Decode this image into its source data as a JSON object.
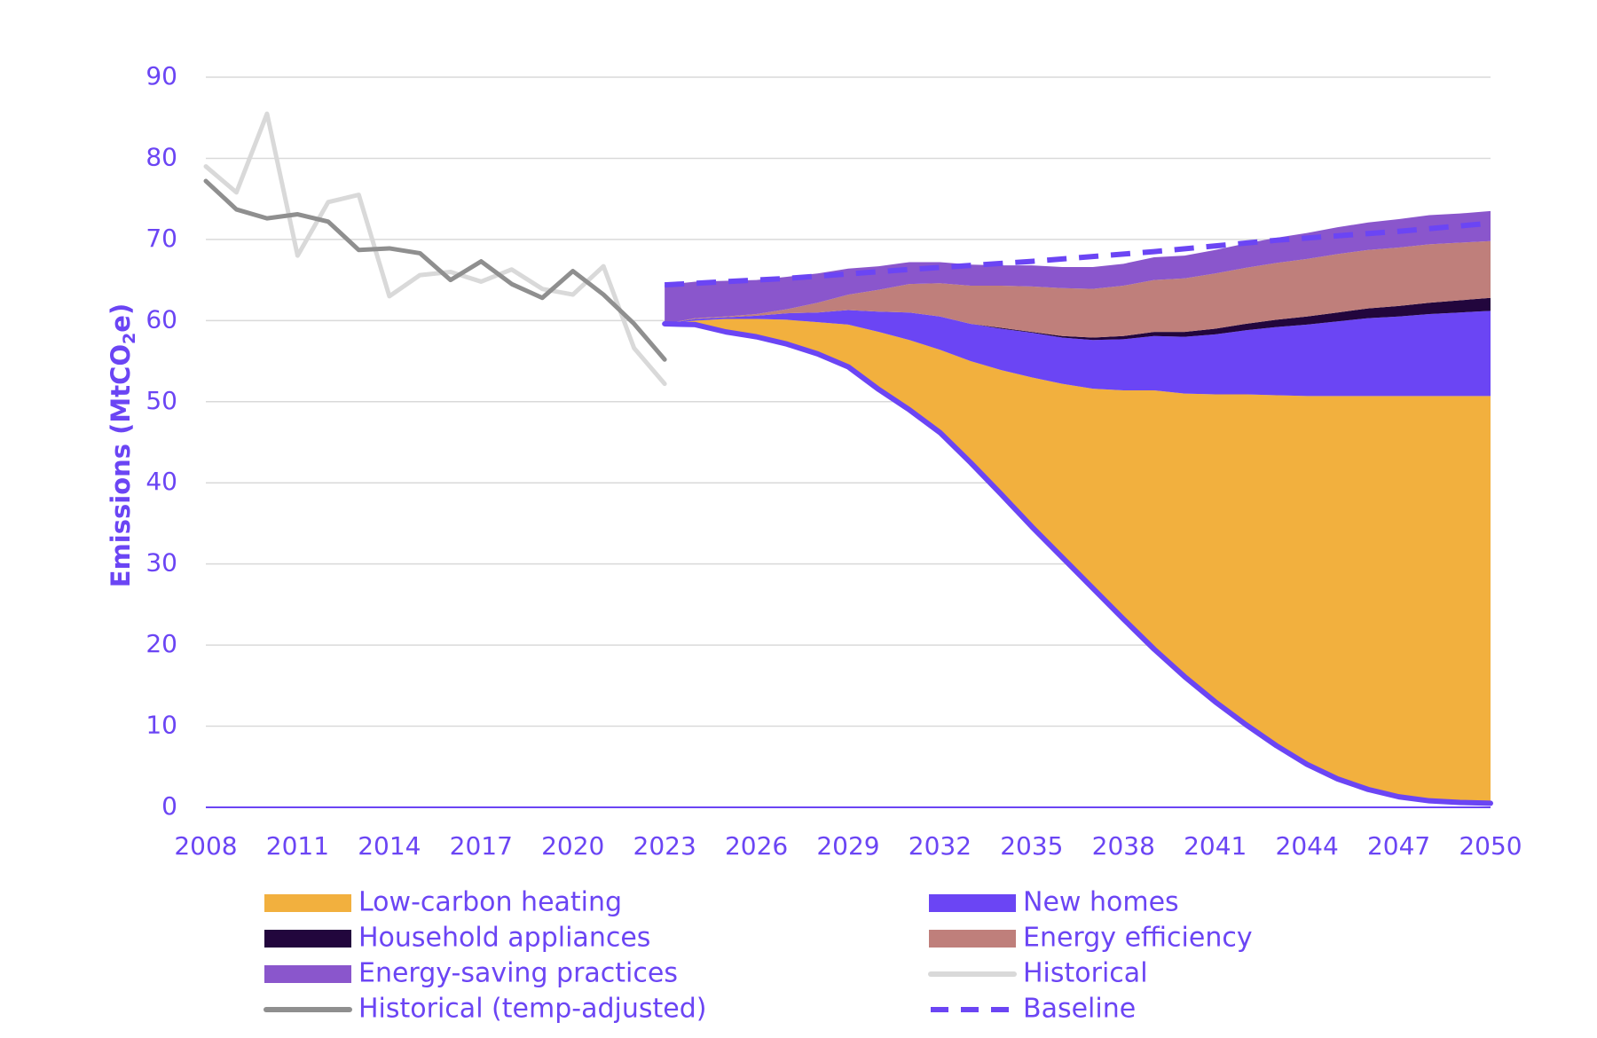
{
  "chart_data": {
    "type": "area",
    "title": "",
    "xlabel": "",
    "ylabel": "Emissions (MtCO2e)",
    "ylabel_parts": {
      "prefix": "Emissions (MtCO",
      "subscript": "2",
      "suffix": "e)"
    },
    "xlim": [
      2008,
      2050
    ],
    "ylim": [
      0,
      90
    ],
    "yticks": [
      0,
      10,
      20,
      30,
      40,
      50,
      60,
      70,
      80,
      90
    ],
    "xticks": [
      2008,
      2011,
      2014,
      2017,
      2020,
      2023,
      2026,
      2029,
      2032,
      2035,
      2038,
      2041,
      2044,
      2047,
      2050
    ],
    "grid": true,
    "legend_position": "bottom",
    "projection_years": [
      2023,
      2024,
      2025,
      2026,
      2027,
      2028,
      2029,
      2030,
      2031,
      2032,
      2033,
      2034,
      2035,
      2036,
      2037,
      2038,
      2039,
      2040,
      2041,
      2042,
      2043,
      2044,
      2045,
      2046,
      2047,
      2048,
      2049,
      2050
    ],
    "pathway": [
      59.6,
      59.5,
      58.6,
      58.0,
      57.1,
      55.9,
      54.3,
      51.5,
      49.0,
      46.2,
      42.5,
      38.6,
      34.6,
      30.8,
      27.0,
      23.2,
      19.5,
      16.1,
      13.0,
      10.2,
      7.6,
      5.3,
      3.5,
      2.2,
      1.3,
      0.8,
      0.6,
      0.5
    ],
    "series": [
      {
        "name": "Low-carbon heating",
        "color": "#f2b03e",
        "values": [
          0.0,
          0.5,
          1.6,
          2.2,
          3.0,
          3.9,
          5.2,
          7.1,
          8.6,
          10.2,
          12.5,
          15.3,
          18.4,
          21.4,
          24.6,
          28.2,
          31.9,
          34.9,
          37.9,
          40.7,
          43.2,
          45.4,
          47.2,
          48.5,
          49.4,
          49.9,
          50.1,
          50.2
        ]
      },
      {
        "name": "New homes",
        "color": "#6b45f4",
        "values": [
          0.0,
          0.2,
          0.2,
          0.4,
          0.8,
          1.2,
          1.8,
          2.5,
          3.4,
          4.1,
          4.6,
          5.1,
          5.5,
          5.7,
          6.0,
          6.3,
          6.7,
          7.0,
          7.4,
          7.9,
          8.4,
          8.8,
          9.2,
          9.6,
          9.8,
          10.1,
          10.3,
          10.5
        ]
      },
      {
        "name": "Household appliances",
        "color": "#22063d",
        "values": [
          0.0,
          0.0,
          0.0,
          0.0,
          0.0,
          0.0,
          0.0,
          0.0,
          0.0,
          0.0,
          0.0,
          0.1,
          0.1,
          0.2,
          0.3,
          0.4,
          0.5,
          0.6,
          0.7,
          0.8,
          0.9,
          1.0,
          1.1,
          1.2,
          1.3,
          1.4,
          1.5,
          1.6
        ]
      },
      {
        "name": "Energy efficiency",
        "color": "#bf7f7b",
        "values": [
          0.0,
          0.1,
          0.1,
          0.2,
          0.5,
          1.2,
          1.9,
          2.7,
          3.5,
          4.1,
          4.7,
          5.2,
          5.6,
          5.9,
          6.0,
          6.2,
          6.4,
          6.6,
          6.8,
          6.9,
          7.0,
          7.1,
          7.2,
          7.2,
          7.2,
          7.2,
          7.1,
          7.0
        ]
      },
      {
        "name": "Energy-saving practices",
        "color": "#8a56cc",
        "values": [
          4.8,
          4.5,
          4.4,
          4.2,
          4.0,
          3.6,
          3.2,
          2.9,
          2.7,
          2.6,
          2.6,
          2.5,
          2.6,
          2.6,
          2.7,
          2.7,
          2.8,
          2.8,
          2.9,
          3.0,
          3.1,
          3.2,
          3.3,
          3.4,
          3.5,
          3.6,
          3.6,
          3.7
        ]
      }
    ],
    "lines": [
      {
        "name": "Historical",
        "color": "#d9d9d9",
        "dash": "solid",
        "years": [
          2008,
          2009,
          2010,
          2011,
          2012,
          2013,
          2014,
          2015,
          2016,
          2017,
          2018,
          2019,
          2020,
          2021,
          2022,
          2023
        ],
        "values": [
          79.0,
          75.8,
          85.5,
          68.0,
          74.6,
          75.5,
          63.0,
          65.6,
          66.0,
          64.8,
          66.3,
          63.9,
          63.2,
          66.7,
          56.6,
          52.2
        ]
      },
      {
        "name": "Historical (temp-adjusted)",
        "color": "#8f8f8f",
        "dash": "solid",
        "years": [
          2008,
          2009,
          2010,
          2011,
          2012,
          2013,
          2014,
          2015,
          2016,
          2017,
          2018,
          2019,
          2020,
          2021,
          2022,
          2023
        ],
        "values": [
          77.2,
          73.7,
          72.6,
          73.1,
          72.2,
          68.7,
          68.9,
          68.3,
          65.0,
          67.3,
          64.5,
          62.8,
          66.1,
          63.2,
          59.6,
          55.2
        ]
      },
      {
        "name": "Baseline",
        "color": "#6b45f4",
        "dash": "dashed",
        "years": [
          2023,
          2027,
          2031,
          2035,
          2039,
          2043,
          2047,
          2050
        ],
        "values": [
          64.4,
          65.2,
          66.3,
          67.3,
          68.5,
          69.9,
          71.0,
          72.0
        ]
      }
    ],
    "legend": [
      {
        "label": "Low-carbon heating",
        "kind": "area",
        "color": "#f2b03e"
      },
      {
        "label": "New homes",
        "kind": "area",
        "color": "#6b45f4"
      },
      {
        "label": "Household appliances",
        "kind": "area",
        "color": "#22063d"
      },
      {
        "label": "Energy efficiency",
        "kind": "area",
        "color": "#bf7f7b"
      },
      {
        "label": "Energy-saving practices",
        "kind": "area",
        "color": "#8a56cc"
      },
      {
        "label": "Historical",
        "kind": "line",
        "color": "#d9d9d9"
      },
      {
        "label": "Historical (temp-adjusted)",
        "kind": "line",
        "color": "#8f8f8f"
      },
      {
        "label": "Baseline",
        "kind": "dashed",
        "color": "#6b45f4"
      }
    ]
  }
}
